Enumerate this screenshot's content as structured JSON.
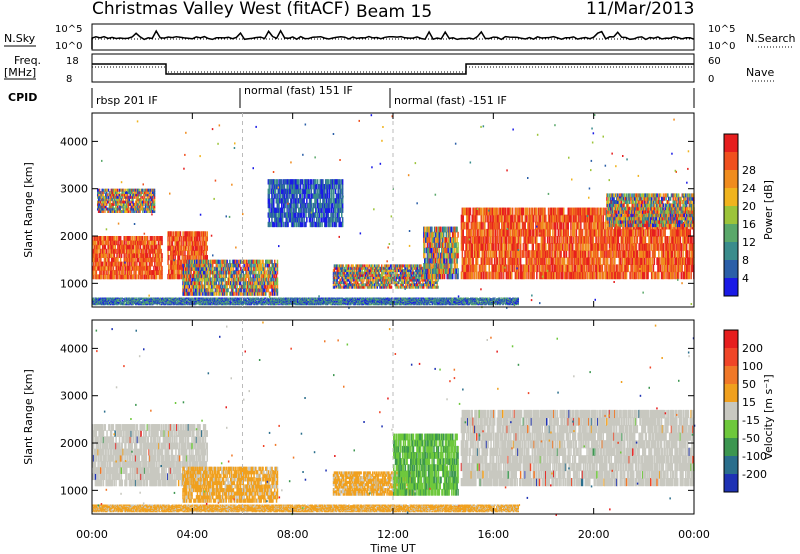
{
  "header": {
    "station": "Christmas Valley West (fitACF)",
    "beam": "Beam 15",
    "date": "11/Mar/2013"
  },
  "top_panels": {
    "nsky_label": "N.Sky",
    "nsky_ticks": [
      "10^5",
      "10^0"
    ],
    "nsearch_label": "N.Search",
    "nsearch_ticks": [
      "10^5",
      "10^0"
    ],
    "freq_label_1": "Freq.",
    "freq_label_2": "[MHz]",
    "freq_ticks": [
      "18",
      "8"
    ],
    "nave_label": "Nave",
    "nave_ticks": [
      "60",
      "0"
    ],
    "cpid_label": "CPID",
    "cpid_segments": [
      {
        "label": "rbsp 201 IF",
        "start_hr": 0,
        "end_hr": 6
      },
      {
        "label": "normal (fast) 151 IF",
        "start_hr": 6,
        "end_hr": 12
      },
      {
        "label": "normal (fast) -151 IF",
        "start_hr": 12,
        "end_hr": 24
      }
    ]
  },
  "chart_data": [
    {
      "type": "heatmap",
      "name": "power",
      "ylabel": "Slant Range [km]",
      "y_ticks": [
        "1000",
        "2000",
        "3000",
        "4000"
      ],
      "ylim": [
        500,
        4600
      ],
      "colorbar_label": "Power [dB]",
      "colorbar_ticks": [
        "4",
        "8",
        "12",
        "16",
        "20",
        "24",
        "28"
      ],
      "colorbar_colors": [
        "#1a1ae6",
        "#2b5fa8",
        "#3a8c8c",
        "#5aa86a",
        "#9cc43a",
        "#f0b41e",
        "#f08c1e",
        "#f0501e",
        "#e61e1e"
      ],
      "echo_regions": [
        {
          "t0": 0.0,
          "t1": 2.8,
          "r0": 1100,
          "r1": 2000,
          "level": "high"
        },
        {
          "t0": 0.2,
          "t1": 2.5,
          "r0": 2500,
          "r1": 3000,
          "level": "mixed"
        },
        {
          "t0": 3.0,
          "t1": 4.6,
          "r0": 1100,
          "r1": 2100,
          "level": "high"
        },
        {
          "t0": 3.6,
          "t1": 7.4,
          "r0": 750,
          "r1": 1500,
          "level": "mixed"
        },
        {
          "t0": 7.0,
          "t1": 10.0,
          "r0": 2200,
          "r1": 3200,
          "level": "low"
        },
        {
          "t0": 9.6,
          "t1": 13.8,
          "r0": 900,
          "r1": 1400,
          "level": "mixed"
        },
        {
          "t0": 13.2,
          "t1": 14.6,
          "r0": 1100,
          "r1": 2200,
          "level": "mixed"
        },
        {
          "t0": 14.7,
          "t1": 24.0,
          "r0": 1100,
          "r1": 2600,
          "level": "high"
        },
        {
          "t0": 20.5,
          "t1": 24.0,
          "r0": 2200,
          "r1": 2900,
          "level": "mixed"
        },
        {
          "t0": 0.0,
          "t1": 17.0,
          "r0": 550,
          "r1": 700,
          "level": "lowband"
        }
      ]
    },
    {
      "type": "heatmap",
      "name": "velocity",
      "xlabel": "Time UT",
      "x_ticks": [
        "00:00",
        "04:00",
        "08:00",
        "12:00",
        "16:00",
        "20:00",
        "00:00"
      ],
      "xlim_hr": [
        0,
        24
      ],
      "ylabel": "Slant Range [km]",
      "y_ticks": [
        "1000",
        "2000",
        "3000",
        "4000"
      ],
      "ylim": [
        500,
        4600
      ],
      "colorbar_label": "Velocity [m s⁻¹]",
      "colorbar_ticks": [
        "200",
        "100",
        "50",
        "15",
        "-15",
        "-50",
        "-100",
        "-200"
      ],
      "colorbar_colors": [
        "#1e32b4",
        "#2a6e8c",
        "#3c9650",
        "#6ec83c",
        "#c8c8c0",
        "#f0a01e",
        "#f07828",
        "#f04628",
        "#e61e1e"
      ],
      "echo_regions": [
        {
          "t0": 0.0,
          "t1": 4.6,
          "r0": 1100,
          "r1": 2400,
          "color_class": "gray"
        },
        {
          "t0": 3.6,
          "t1": 7.4,
          "r0": 750,
          "r1": 1500,
          "color_class": "orange"
        },
        {
          "t0": 9.6,
          "t1": 12.8,
          "r0": 900,
          "r1": 1400,
          "color_class": "orange"
        },
        {
          "t0": 12.0,
          "t1": 14.6,
          "r0": 900,
          "r1": 2200,
          "color_class": "green"
        },
        {
          "t0": 14.7,
          "t1": 24.0,
          "r0": 1100,
          "r1": 2700,
          "color_class": "gray"
        },
        {
          "t0": 0.0,
          "t1": 17.0,
          "r0": 550,
          "r1": 700,
          "color_class": "orange"
        }
      ]
    }
  ]
}
